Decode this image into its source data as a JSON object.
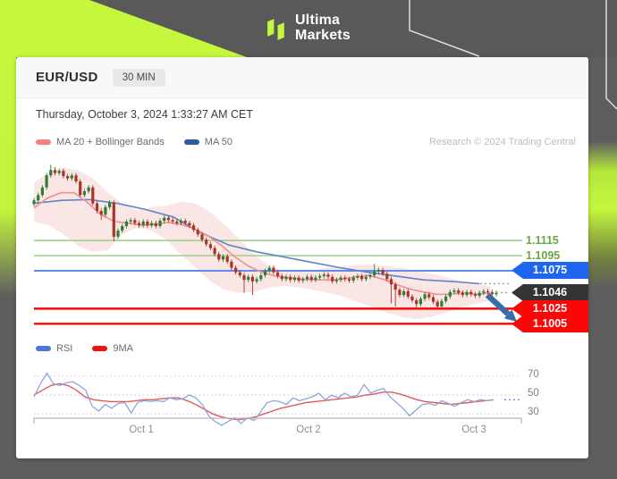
{
  "header": {
    "brand_line1": "Ultima",
    "brand_line2": "Markets"
  },
  "card": {
    "pair": "EUR/USD",
    "timeframe": "30 MIN",
    "timestamp": "Thursday, October 3, 2024 1:33:27 AM CET",
    "attribution": "Research © 2024 Trading Central",
    "price_legend": [
      {
        "label": "MA 20 + Bollinger Bands",
        "color": "#f48080"
      },
      {
        "label": "MA 50",
        "color": "#2b5c9e"
      }
    ],
    "rsi_legend": [
      {
        "label": "RSI",
        "color": "#4a7ad2"
      },
      {
        "label": "9MA",
        "color": "#ef1111"
      }
    ]
  },
  "chart_data": {
    "type": "candlestick",
    "pair": "EUR/USD",
    "interval": "30 MIN",
    "x_axis": {
      "labels": [
        "Oct 1",
        "Oct 2",
        "Oct 3"
      ]
    },
    "levels": [
      {
        "label": "1.1115",
        "price": 1.1115,
        "kind": "line",
        "line_color": "#a5d48e",
        "text_color": "#67a845"
      },
      {
        "label": "1.1095",
        "price": 1.1095,
        "kind": "line",
        "line_color": "#a5d48e",
        "text_color": "#67a845"
      },
      {
        "label": "1.1075",
        "price": 1.1075,
        "kind": "badge",
        "line_color": "#4d7df2",
        "badge_color": "#1e66f0"
      },
      {
        "label": "1.1046",
        "price": 1.1046,
        "kind": "badge",
        "line_color": "none",
        "badge_color": "#343434"
      },
      {
        "label": "1.1025",
        "price": 1.1025,
        "kind": "badge",
        "line_color": "#fb0505",
        "badge_color": "#fb0707"
      },
      {
        "label": "1.1005",
        "price": 1.1005,
        "kind": "badge",
        "line_color": "#fb0505",
        "badge_color": "#fb0707"
      }
    ],
    "candles": {
      "first_open": 1.1163,
      "default_wick": 0.0003,
      "closes": [
        1.1168,
        1.1175,
        1.1185,
        1.1201,
        1.1208,
        1.1204,
        1.1207,
        1.12,
        1.1197,
        1.1201,
        1.1193,
        1.1175,
        1.118,
        1.1185,
        1.1164,
        1.1154,
        1.1149,
        1.1159,
        1.1165,
        1.112,
        1.1128,
        1.1134,
        1.114,
        1.1142,
        1.1138,
        1.1135,
        1.114,
        1.1135,
        1.1138,
        1.1134,
        1.1141,
        1.1145,
        1.1142,
        1.114,
        1.1138,
        1.1141,
        1.1138,
        1.1135,
        1.1129,
        1.1123,
        1.1116,
        1.111,
        1.1105,
        1.1097,
        1.109,
        1.1094,
        1.1087,
        1.1079,
        1.1073,
        1.1069,
        1.1063,
        1.1067,
        1.1061,
        1.1064,
        1.1069,
        1.1075,
        1.1079,
        1.1073,
        1.1068,
        1.1064,
        1.1067,
        1.1063,
        1.1066,
        1.1062,
        1.1064,
        1.1067,
        1.1063,
        1.1066,
        1.1068,
        1.107,
        1.1067,
        1.1061,
        1.1063,
        1.1066,
        1.1064,
        1.1062,
        1.1066,
        1.1068,
        1.1064,
        1.1067,
        1.1069,
        1.1074,
        1.1076,
        1.1071,
        1.1064,
        1.1057,
        1.105,
        1.1043,
        1.1048,
        1.1041,
        1.1036,
        1.1031,
        1.1038,
        1.1044,
        1.104,
        1.1034,
        1.1028,
        1.1035,
        1.1041,
        1.1047,
        1.1049,
        1.1046,
        1.1043,
        1.1047,
        1.1044,
        1.1042,
        1.1046,
        1.1048,
        1.1047,
        1.1044,
        1.1046
      ],
      "wick_overrides": {
        "4": {
          "h": 1.1215
        },
        "5": {
          "h": 1.1212
        },
        "16": {
          "l": 1.1142
        },
        "19": {
          "l": 1.1114
        },
        "50": {
          "l": 1.1046
        },
        "52": {
          "l": 1.1043
        },
        "81": {
          "h": 1.1084
        },
        "85": {
          "l": 1.1032
        },
        "86": {
          "l": 1.1028
        },
        "91": {
          "l": 1.1024
        },
        "96": {
          "l": 1.1026
        }
      },
      "up_color": "#2e7d36",
      "down_color": "#ab3428"
    },
    "ma20": {
      "color": "#f09090",
      "values": [
        1.1158,
        1.1171,
        1.1178,
        1.1178,
        1.1165,
        1.1149,
        1.114,
        1.1138,
        1.1135,
        1.1136,
        1.1139,
        1.1136,
        1.113,
        1.1121,
        1.1108,
        1.1093,
        1.1081,
        1.1073,
        1.1068,
        1.1066,
        1.1064,
        1.1063,
        1.1063,
        1.1064,
        1.1067,
        1.1069,
        1.1064,
        1.1057,
        1.1051,
        1.1047,
        1.1044,
        1.1044,
        1.1046,
        1.1044,
        1.1046
      ]
    },
    "ma50": {
      "color": "#5b87c7",
      "values": [
        1.1164,
        1.1168,
        1.1169,
        1.1164,
        1.1156,
        1.1146,
        1.1125,
        1.1109,
        1.11,
        1.1093,
        1.1086,
        1.1079,
        1.1073,
        1.1068,
        1.1063,
        1.1061,
        1.1058
      ]
    },
    "bollinger": {
      "fill": "#f7cdcd",
      "upper": [
        1.1191,
        1.1205,
        1.1211,
        1.1208,
        1.1197,
        1.1179,
        1.1164,
        1.1155,
        1.1159,
        1.1161,
        1.1166,
        1.1164,
        1.1152,
        1.1135,
        1.1116,
        1.1096,
        1.1081,
        1.1075,
        1.1075,
        1.1076,
        1.1079,
        1.1081,
        1.1083,
        1.1083,
        1.1081,
        1.1079,
        1.1075,
        1.1071,
        1.1067,
        1.1062,
        1.1057,
        1.1055
      ],
      "lower": [
        1.114,
        1.1135,
        1.1123,
        1.1108,
        1.11,
        1.1102,
        1.1123,
        1.1132,
        1.1128,
        1.1116,
        1.1096,
        1.1079,
        1.1061,
        1.1049,
        1.1046,
        1.1047,
        1.1053,
        1.1055,
        1.1053,
        1.105,
        1.1046,
        1.1041,
        1.1034,
        1.1027,
        1.102,
        1.1014,
        1.1011,
        1.1014,
        1.102,
        1.1027,
        1.1031,
        1.1035
      ]
    },
    "rsi": {
      "gridlines": [
        "70",
        "50",
        "30"
      ],
      "line_color": "#8aa7de",
      "ma_color": "#e25b5b",
      "last_dotted_value": 45,
      "values": [
        48,
        62,
        73,
        62,
        60,
        63,
        64,
        60,
        55,
        38,
        33,
        40,
        36,
        41,
        42,
        31,
        42,
        44,
        43,
        44,
        43,
        47,
        45,
        46,
        50,
        47,
        40,
        28,
        22,
        18,
        22,
        26,
        20,
        26,
        23,
        32,
        42,
        44,
        43,
        40,
        47,
        44,
        46,
        48,
        52,
        45,
        50,
        47,
        52,
        48,
        50,
        61,
        52,
        55,
        57,
        48,
        42,
        36,
        28,
        34,
        40,
        41,
        39,
        44,
        41,
        38,
        42,
        45,
        43,
        45,
        44,
        45
      ],
      "ma9": [
        50,
        55,
        60,
        62,
        60,
        55,
        48,
        45,
        44,
        43,
        43,
        43,
        44,
        45,
        45,
        46,
        47,
        47,
        44,
        40,
        35,
        30,
        27,
        25,
        24,
        25,
        27,
        30,
        33,
        36,
        38,
        40,
        42,
        43,
        44,
        45,
        46,
        47,
        48,
        50,
        51,
        53,
        53,
        51,
        48,
        45,
        43,
        42,
        41,
        40,
        41,
        42,
        43,
        44,
        45
      ]
    },
    "annotation_arrow": {
      "from_price": 1.1043,
      "to_price": 1.1009,
      "color": "#3a6da8"
    }
  }
}
